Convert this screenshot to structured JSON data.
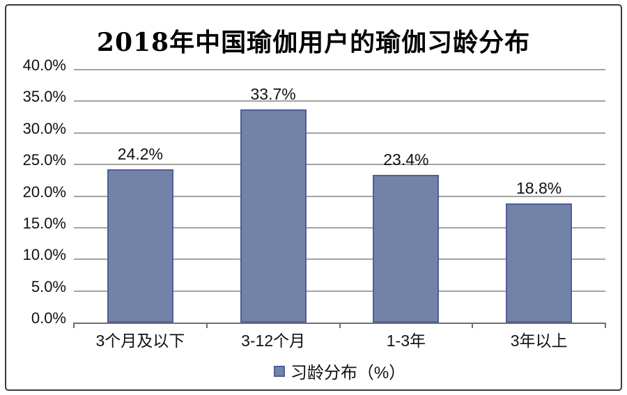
{
  "chart_data": {
    "type": "bar",
    "title": "2018年中国瑜伽用户的瑜伽习龄分布",
    "categories": [
      "3个月及以下",
      "3-12个月",
      "1-3年",
      "3年以上"
    ],
    "values": [
      24.2,
      33.7,
      23.4,
      18.8
    ],
    "value_labels": [
      "24.2%",
      "33.7%",
      "23.4%",
      "18.8%"
    ],
    "series_name": "习龄分布（%）",
    "xlabel": "",
    "ylabel": "",
    "ylim": [
      0,
      40
    ],
    "ytick_step": 5,
    "ytick_labels": [
      "0.0%",
      "5.0%",
      "10.0%",
      "15.0%",
      "20.0%",
      "25.0%",
      "30.0%",
      "35.0%",
      "40.0%"
    ],
    "grid": "horizontal",
    "legend_position": "bottom",
    "colors": {
      "bar_fill": "#7383a8",
      "bar_border": "#4f5e99",
      "gridline": "#a3a3a3",
      "axis_line": "#6e6e6e",
      "text": "#111111",
      "frame_border": "#3c3c3c"
    }
  }
}
